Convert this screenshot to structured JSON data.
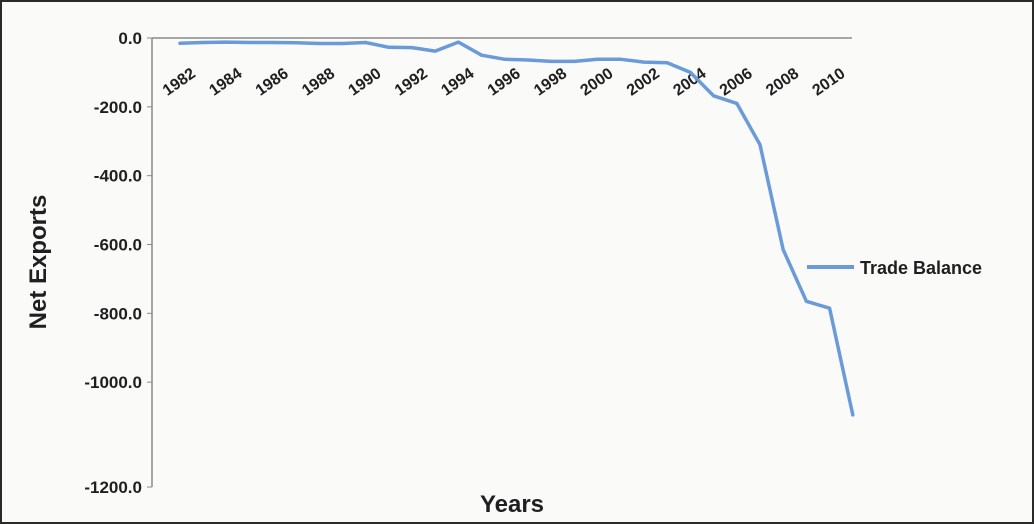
{
  "chart_data": {
    "type": "line",
    "title": "",
    "xlabel": "Years",
    "ylabel": "Net Exports",
    "ylim": [
      -1200,
      0
    ],
    "y_ticks": [
      "0.0",
      "-200.0",
      "-400.0",
      "-600.0",
      "-800.0",
      "-1000.0",
      "-1200.0"
    ],
    "x_tick_labels": [
      "1982",
      "1984",
      "1986",
      "1988",
      "1990",
      "1992",
      "1994",
      "1996",
      "1998",
      "2000",
      "2002",
      "2004",
      "2006",
      "2008",
      "2010"
    ],
    "grid": false,
    "legend": {
      "position": "right",
      "entries": [
        "Trade Balance"
      ]
    },
    "colors": {
      "line": "#6a9bd8",
      "axis": "#8a8a8a"
    },
    "series": [
      {
        "name": "Trade Balance",
        "x": [
          1982,
          1983,
          1984,
          1985,
          1986,
          1987,
          1988,
          1989,
          1990,
          1991,
          1992,
          1993,
          1994,
          1995,
          1996,
          1997,
          1998,
          1999,
          2000,
          2001,
          2002,
          2003,
          2004,
          2005,
          2006,
          2007,
          2008,
          2009,
          2010,
          2011
        ],
        "values": [
          -15,
          -13,
          -12,
          -13,
          -13,
          -14,
          -16,
          -16,
          -13,
          -27,
          -28,
          -38,
          -12,
          -50,
          -62,
          -64,
          -68,
          -68,
          -62,
          -62,
          -70,
          -72,
          -100,
          -168,
          -190,
          -310,
          -615,
          -765,
          -785,
          -1095
        ]
      }
    ]
  }
}
